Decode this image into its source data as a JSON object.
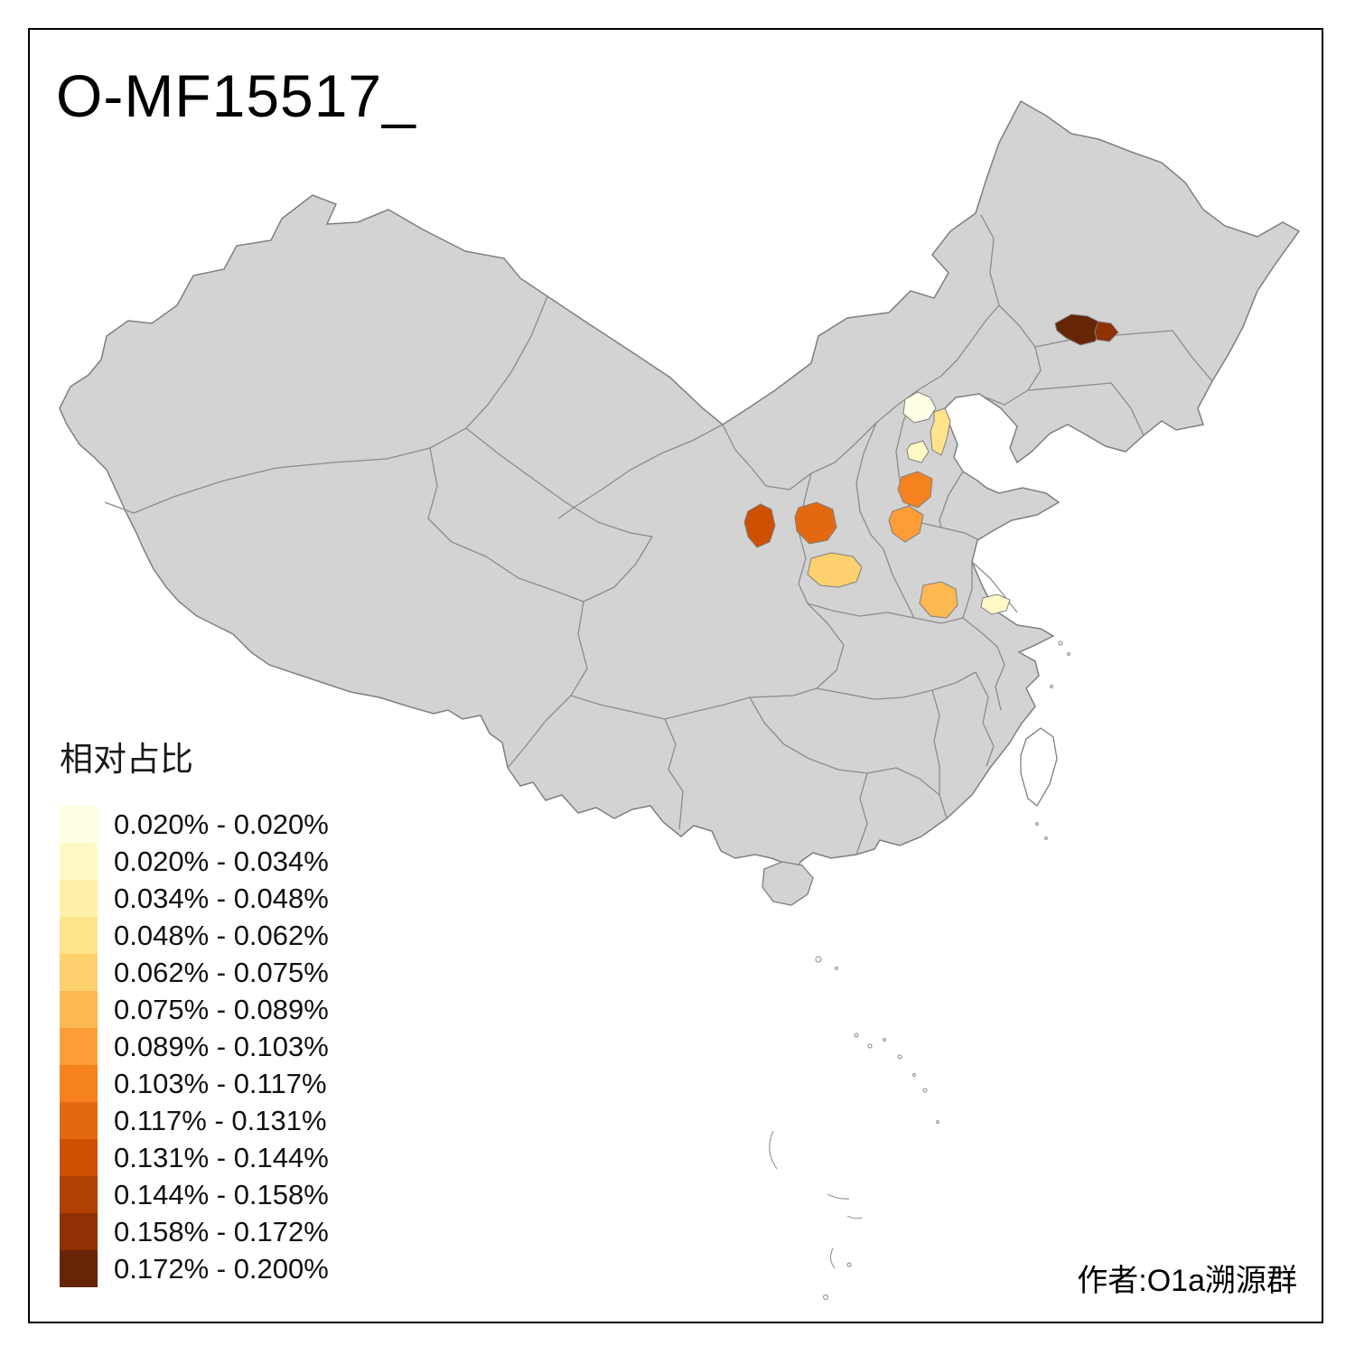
{
  "title": "O-MF15517_",
  "attribution": "作者:O1a溯源群",
  "legend": {
    "title": "相对占比",
    "bins": [
      {
        "label": "0.020% - 0.020%",
        "color": "#FFFFE5"
      },
      {
        "label": "0.020% - 0.034%",
        "color": "#FFF9C6"
      },
      {
        "label": "0.034% - 0.048%",
        "color": "#FEF0A8"
      },
      {
        "label": "0.048% - 0.062%",
        "color": "#FEE38A"
      },
      {
        "label": "0.062% - 0.075%",
        "color": "#FED16E"
      },
      {
        "label": "0.075% - 0.089%",
        "color": "#FEB852"
      },
      {
        "label": "0.089% - 0.103%",
        "color": "#FE9D38"
      },
      {
        "label": "0.103% - 0.117%",
        "color": "#F5821F"
      },
      {
        "label": "0.117% - 0.131%",
        "color": "#E36911"
      },
      {
        "label": "0.131% - 0.144%",
        "color": "#CD4F02"
      },
      {
        "label": "0.144% - 0.158%",
        "color": "#B14003"
      },
      {
        "label": "0.158% - 0.172%",
        "color": "#8F3104"
      },
      {
        "label": "0.172% - 0.200%",
        "color": "#662506"
      }
    ]
  },
  "map": {
    "base_fill": "#D3D3D3",
    "island_fill": "#FFFFFF",
    "border_color": "#7F7F7F",
    "inner_border_color": "#8C8C8C",
    "regions": [
      {
        "id": "region-1",
        "color": "#662506"
      },
      {
        "id": "region-2",
        "color": "#8F3104"
      },
      {
        "id": "region-3",
        "color": "#FFFFE5"
      },
      {
        "id": "region-4",
        "color": "#FEE38A"
      },
      {
        "id": "region-5",
        "color": "#FFF9C6"
      },
      {
        "id": "region-6",
        "color": "#F5821F"
      },
      {
        "id": "region-7",
        "color": "#FE9D38"
      },
      {
        "id": "region-8",
        "color": "#CD4F02"
      },
      {
        "id": "region-9",
        "color": "#E36911"
      },
      {
        "id": "region-10",
        "color": "#FED16E"
      },
      {
        "id": "region-11",
        "color": "#FEB852"
      },
      {
        "id": "region-12",
        "color": "#FFF9C6"
      }
    ]
  }
}
